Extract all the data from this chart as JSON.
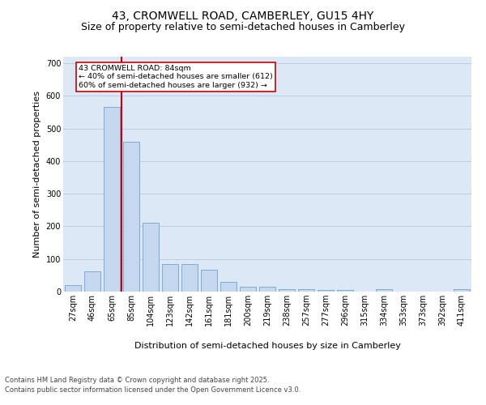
{
  "title_line1": "43, CROMWELL ROAD, CAMBERLEY, GU15 4HY",
  "title_line2": "Size of property relative to semi-detached houses in Camberley",
  "xlabel": "Distribution of semi-detached houses by size in Camberley",
  "ylabel": "Number of semi-detached properties",
  "bar_color": "#c5d8ef",
  "bar_edge_color": "#7aadd4",
  "vline_color": "#cc0000",
  "annotation_text": "43 CROMWELL ROAD: 84sqm\n← 40% of semi-detached houses are smaller (612)\n60% of semi-detached houses are larger (932) →",
  "annotation_box_color": "#ffffff",
  "annotation_box_edge": "#cc0000",
  "categories": [
    "27sqm",
    "46sqm",
    "65sqm",
    "85sqm",
    "104sqm",
    "123sqm",
    "142sqm",
    "161sqm",
    "181sqm",
    "200sqm",
    "219sqm",
    "238sqm",
    "257sqm",
    "277sqm",
    "296sqm",
    "315sqm",
    "334sqm",
    "353sqm",
    "373sqm",
    "392sqm",
    "411sqm"
  ],
  "values": [
    20,
    62,
    565,
    460,
    210,
    85,
    85,
    68,
    30,
    15,
    15,
    8,
    8,
    5,
    5,
    0,
    8,
    0,
    0,
    0,
    7
  ],
  "ylim": [
    0,
    720
  ],
  "yticks": [
    0,
    100,
    200,
    300,
    400,
    500,
    600,
    700
  ],
  "plot_bg_color": "#dce8f5",
  "footer_line1": "Contains HM Land Registry data © Crown copyright and database right 2025.",
  "footer_line2": "Contains public sector information licensed under the Open Government Licence v3.0.",
  "title_fontsize": 10,
  "subtitle_fontsize": 9,
  "axis_label_fontsize": 8,
  "tick_fontsize": 7,
  "footer_fontsize": 6,
  "vline_bar_index": 2.5
}
